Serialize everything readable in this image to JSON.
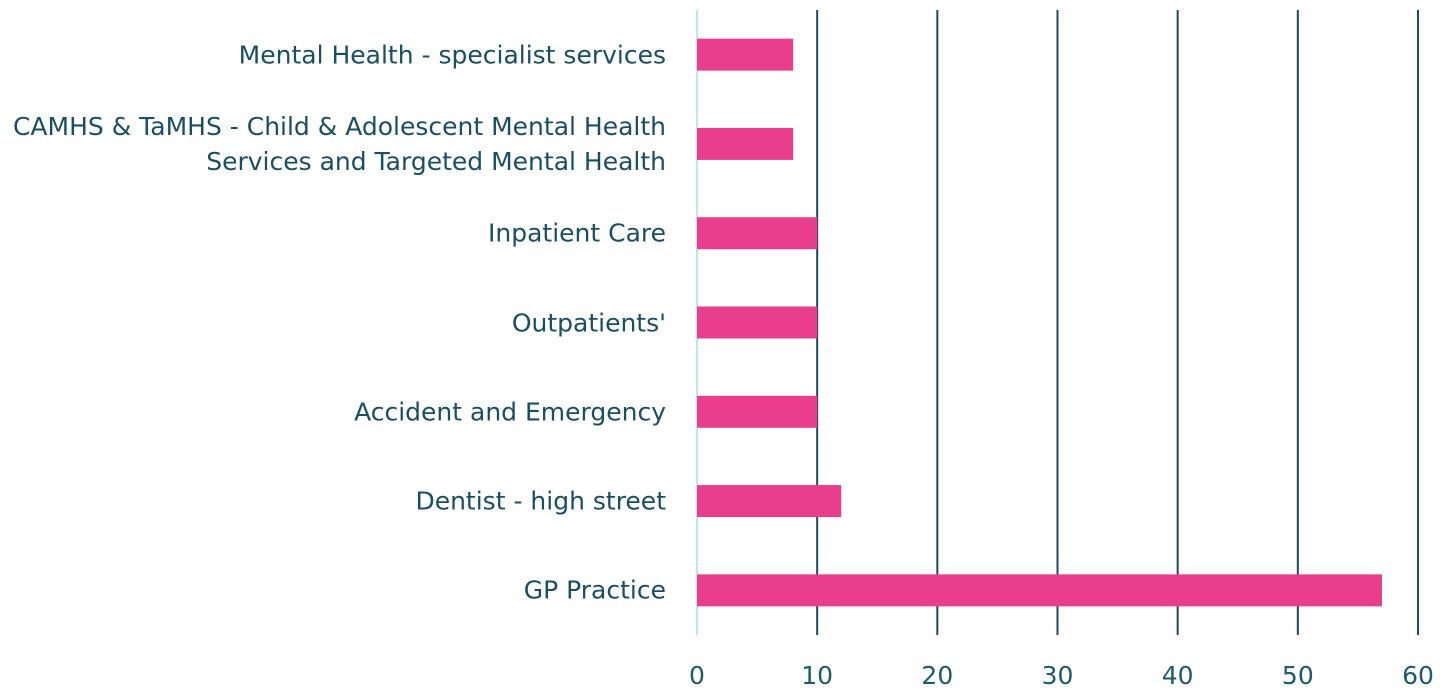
{
  "chart_data": {
    "type": "hbar",
    "categories": [
      "Mental Health - specialist services",
      "CAMHS & TaMHS - Child & Adolescent Mental Health Services and Targeted Mental Health",
      "Inpatient Care",
      "Outpatients'",
      "Accident and Emergency",
      "Dentist - high street",
      "GP Practice"
    ],
    "values": [
      8,
      8,
      10,
      10,
      10,
      12,
      57
    ],
    "color": "#e83e8c",
    "xlim": [
      0,
      60
    ],
    "xticks": [
      0,
      10,
      20,
      30,
      40,
      50,
      60
    ],
    "grid": true
  }
}
